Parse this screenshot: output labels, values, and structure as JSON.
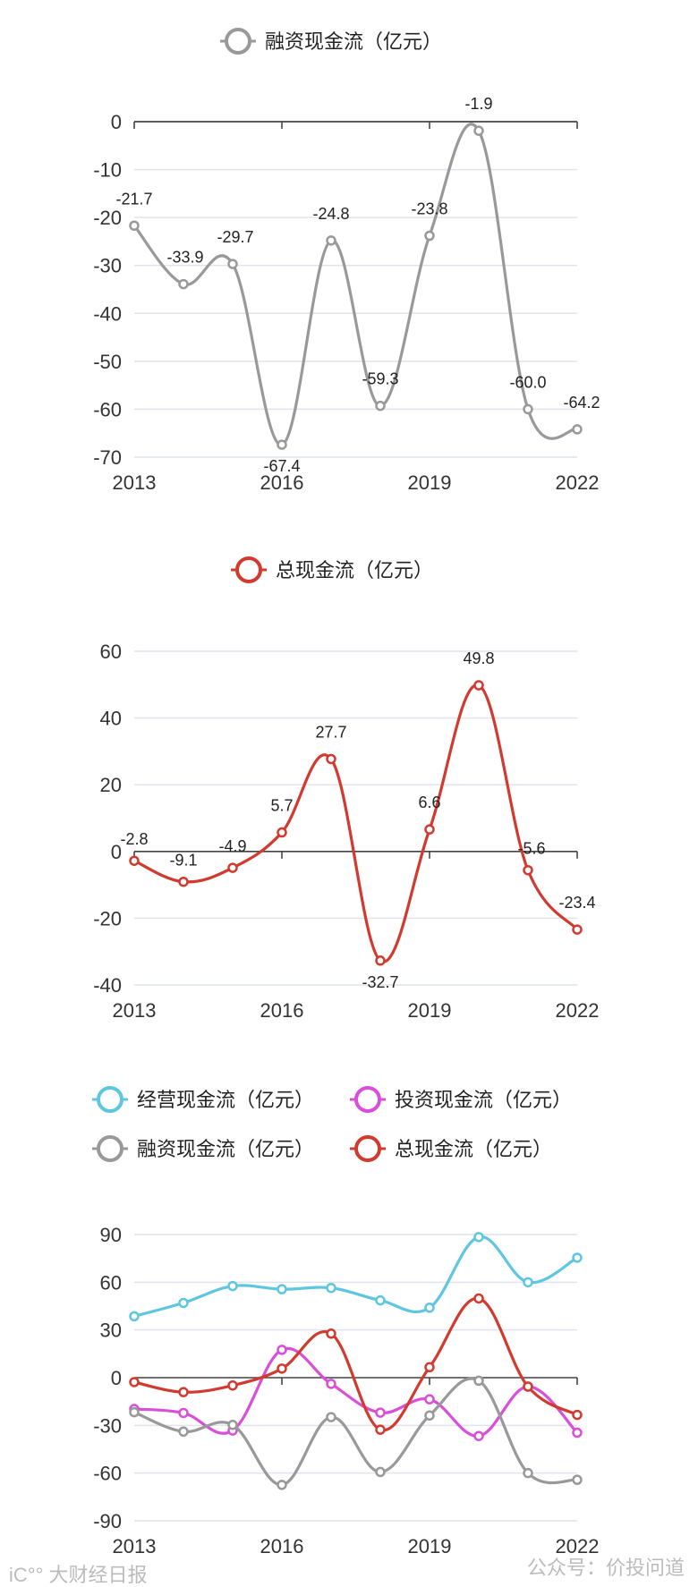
{
  "chart_data": [
    {
      "type": "line",
      "title": "",
      "x": [
        2013,
        2014,
        2015,
        2016,
        2017,
        2018,
        2019,
        2020,
        2021,
        2022
      ],
      "xticks": [
        "2013",
        "2016",
        "2019",
        "2022"
      ],
      "yticks": [
        0,
        -10,
        -20,
        -30,
        -40,
        -50,
        -60,
        -70
      ],
      "ylim": [
        -70,
        0
      ],
      "grid": true,
      "legend_position": "top-center",
      "series": [
        {
          "name": "融资现金流（亿元）",
          "color": "#999999",
          "values": [
            -21.7,
            -33.9,
            -29.7,
            -67.4,
            -24.8,
            -59.3,
            -23.8,
            -1.9,
            -60.0,
            -64.2
          ],
          "labels": [
            "-21.7",
            "-33.9",
            "-29.7",
            "-67.4",
            "-24.8",
            "-59.3",
            "-23.8",
            "-1.9",
            "-60.0",
            "-64.2"
          ]
        }
      ]
    },
    {
      "type": "line",
      "title": "",
      "x": [
        2013,
        2014,
        2015,
        2016,
        2017,
        2018,
        2019,
        2020,
        2021,
        2022
      ],
      "xticks": [
        "2013",
        "2016",
        "2019",
        "2022"
      ],
      "yticks": [
        60,
        40,
        20,
        0,
        -20,
        -40
      ],
      "ylim": [
        -40,
        60
      ],
      "grid": true,
      "legend_position": "top-center",
      "series": [
        {
          "name": "总现金流（亿元）",
          "color": "#d23a2f",
          "values": [
            -2.8,
            -9.1,
            -4.9,
            5.7,
            27.7,
            -32.7,
            6.6,
            49.8,
            -5.6,
            -23.4
          ],
          "labels": [
            "-2.8",
            "-9.1",
            "-4.9",
            "5.7",
            "27.7",
            "-32.7",
            "6.6",
            "49.8",
            "-5.6",
            "-23.4"
          ]
        }
      ]
    },
    {
      "type": "line",
      "title": "",
      "x": [
        2013,
        2014,
        2015,
        2016,
        2017,
        2018,
        2019,
        2020,
        2021,
        2022
      ],
      "xticks": [
        "2013",
        "2016",
        "2019",
        "2022"
      ],
      "yticks": [
        90,
        60,
        30,
        0,
        -30,
        -60,
        -90
      ],
      "ylim": [
        -90,
        90
      ],
      "grid": true,
      "legend_position": "top",
      "series": [
        {
          "name": "经营现金流（亿元）",
          "color": "#5ec6e0",
          "values": [
            38.6,
            47.0,
            57.6,
            55.6,
            56.4,
            48.6,
            44.0,
            88.4,
            60.0,
            75.4
          ]
        },
        {
          "name": "投资现金流（亿元）",
          "color": "#d94fd9",
          "values": [
            -19.7,
            -22.2,
            -33.2,
            17.5,
            -3.9,
            -22.0,
            -13.6,
            -36.7,
            -5.6,
            -34.6
          ]
        },
        {
          "name": "融资现金流（亿元）",
          "color": "#999999",
          "values": [
            -21.7,
            -33.9,
            -29.7,
            -67.4,
            -24.8,
            -59.3,
            -23.8,
            -1.9,
            -60.0,
            -64.2
          ]
        },
        {
          "name": "总现金流（亿元）",
          "color": "#d23a2f",
          "values": [
            -2.8,
            -9.1,
            -4.9,
            5.7,
            27.7,
            -32.7,
            6.6,
            49.8,
            -5.6,
            -23.4
          ]
        }
      ]
    }
  ],
  "watermarks": {
    "left": "iC°° 大财经日报",
    "right": "公众号：价投问道"
  }
}
